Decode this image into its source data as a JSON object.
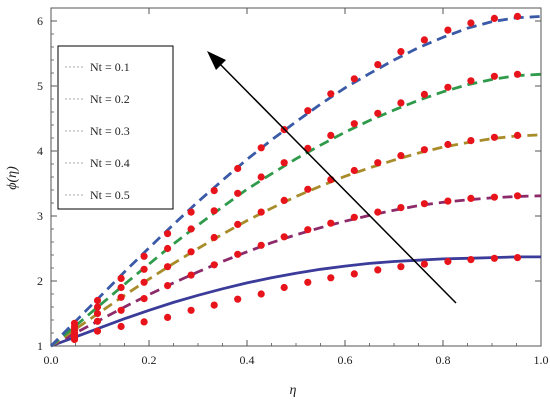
{
  "chart_data": {
    "type": "line",
    "title": "",
    "xlabel": "η",
    "ylabel": "ϕ(η)",
    "xlim": [
      0.0,
      1.0
    ],
    "ylim": [
      1.0,
      6.2
    ],
    "x_ticks": [
      "0.0",
      "0.2",
      "0.4",
      "0.6",
      "0.8",
      "1.0"
    ],
    "y_ticks": [
      "1",
      "2",
      "3",
      "4",
      "5",
      "6"
    ],
    "legend_position": "top-left",
    "annotation": "arrow indicating increasing Nt",
    "marker_color": "#e8141c",
    "series": [
      {
        "name": "Nt = 0.1",
        "color": "#3b3b9a",
        "dash": "solid",
        "curve": {
          "x": [
            0,
            0.05,
            0.1,
            0.15,
            0.2,
            0.25,
            0.3,
            0.35,
            0.4,
            0.45,
            0.5,
            0.55,
            0.6,
            0.65,
            0.7,
            0.75,
            0.8,
            0.85,
            0.9,
            0.95,
            1.0
          ],
          "y": [
            1.0,
            1.14,
            1.28,
            1.42,
            1.55,
            1.67,
            1.78,
            1.88,
            1.97,
            2.05,
            2.12,
            2.18,
            2.23,
            2.27,
            2.3,
            2.32,
            2.34,
            2.35,
            2.36,
            2.37,
            2.37
          ]
        },
        "points": {
          "x": [
            0.048,
            0.048,
            0.095,
            0.143,
            0.19,
            0.238,
            0.286,
            0.333,
            0.381,
            0.429,
            0.476,
            0.524,
            0.571,
            0.619,
            0.667,
            0.714,
            0.762,
            0.81,
            0.857,
            0.905,
            0.952
          ],
          "y": [
            1.1,
            1.15,
            1.23,
            1.3,
            1.37,
            1.44,
            1.55,
            1.63,
            1.72,
            1.8,
            1.9,
            1.98,
            2.05,
            2.11,
            2.17,
            2.22,
            2.26,
            2.3,
            2.33,
            2.35,
            2.36
          ]
        }
      },
      {
        "name": "Nt = 0.2",
        "color": "#8c2a6a",
        "dash": "dashed",
        "curve": {
          "x": [
            0,
            0.05,
            0.1,
            0.15,
            0.2,
            0.25,
            0.3,
            0.35,
            0.4,
            0.45,
            0.5,
            0.55,
            0.6,
            0.65,
            0.7,
            0.75,
            0.8,
            0.85,
            0.9,
            0.95,
            1.0
          ],
          "y": [
            1.0,
            1.2,
            1.4,
            1.6,
            1.79,
            1.97,
            2.14,
            2.3,
            2.45,
            2.59,
            2.71,
            2.82,
            2.92,
            3.01,
            3.09,
            3.16,
            3.21,
            3.25,
            3.28,
            3.3,
            3.31
          ]
        },
        "points": {
          "x": [
            0.048,
            0.048,
            0.095,
            0.143,
            0.19,
            0.238,
            0.286,
            0.333,
            0.381,
            0.429,
            0.476,
            0.524,
            0.571,
            0.619,
            0.667,
            0.714,
            0.762,
            0.81,
            0.857,
            0.905,
            0.952
          ],
          "y": [
            1.12,
            1.2,
            1.38,
            1.55,
            1.73,
            1.93,
            2.09,
            2.25,
            2.41,
            2.55,
            2.68,
            2.79,
            2.89,
            2.98,
            3.06,
            3.13,
            3.19,
            3.23,
            3.27,
            3.29,
            3.31
          ]
        }
      },
      {
        "name": "Nt = 0.3",
        "color": "#a88c2a",
        "dash": "dashed",
        "curve": {
          "x": [
            0,
            0.05,
            0.1,
            0.15,
            0.2,
            0.25,
            0.3,
            0.35,
            0.4,
            0.45,
            0.5,
            0.55,
            0.6,
            0.65,
            0.7,
            0.75,
            0.8,
            0.85,
            0.9,
            0.95,
            1.0
          ],
          "y": [
            1.0,
            1.26,
            1.52,
            1.78,
            2.03,
            2.27,
            2.5,
            2.72,
            2.93,
            3.12,
            3.3,
            3.46,
            3.61,
            3.74,
            3.86,
            3.97,
            4.06,
            4.13,
            4.19,
            4.23,
            4.25
          ]
        },
        "points": {
          "x": [
            0.048,
            0.048,
            0.095,
            0.143,
            0.19,
            0.238,
            0.286,
            0.333,
            0.381,
            0.429,
            0.476,
            0.524,
            0.571,
            0.619,
            0.667,
            0.714,
            0.762,
            0.81,
            0.857,
            0.905,
            0.952
          ],
          "y": [
            1.15,
            1.25,
            1.5,
            1.75,
            1.98,
            2.22,
            2.45,
            2.67,
            2.87,
            3.06,
            3.24,
            3.41,
            3.56,
            3.7,
            3.82,
            3.93,
            4.02,
            4.1,
            4.16,
            4.21,
            4.24
          ]
        }
      },
      {
        "name": "Nt = 0.4",
        "color": "#2f9a4a",
        "dash": "dashed",
        "curve": {
          "x": [
            0,
            0.05,
            0.1,
            0.15,
            0.2,
            0.25,
            0.3,
            0.35,
            0.4,
            0.45,
            0.5,
            0.55,
            0.6,
            0.65,
            0.7,
            0.75,
            0.8,
            0.85,
            0.9,
            0.95,
            1.0
          ],
          "y": [
            1.0,
            1.31,
            1.63,
            1.95,
            2.26,
            2.57,
            2.86,
            3.14,
            3.41,
            3.65,
            3.88,
            4.09,
            4.29,
            4.47,
            4.63,
            4.78,
            4.91,
            5.02,
            5.1,
            5.16,
            5.18
          ]
        },
        "points": {
          "x": [
            0.048,
            0.048,
            0.095,
            0.143,
            0.19,
            0.238,
            0.286,
            0.333,
            0.381,
            0.429,
            0.476,
            0.524,
            0.571,
            0.619,
            0.667,
            0.714,
            0.762,
            0.81,
            0.857,
            0.905,
            0.952
          ],
          "y": [
            1.2,
            1.3,
            1.6,
            1.9,
            2.18,
            2.5,
            2.8,
            3.08,
            3.35,
            3.6,
            3.82,
            4.04,
            4.24,
            4.42,
            4.58,
            4.74,
            4.87,
            4.98,
            5.08,
            5.15,
            5.18
          ]
        }
      },
      {
        "name": "Nt = 0.5",
        "color": "#3a5aa8",
        "dash": "dashed",
        "curve": {
          "x": [
            0,
            0.05,
            0.1,
            0.15,
            0.2,
            0.25,
            0.3,
            0.35,
            0.4,
            0.45,
            0.5,
            0.55,
            0.6,
            0.65,
            0.7,
            0.75,
            0.8,
            0.85,
            0.9,
            0.95,
            1.0
          ],
          "y": [
            1.0,
            1.38,
            1.76,
            2.14,
            2.51,
            2.87,
            3.22,
            3.55,
            3.87,
            4.17,
            4.45,
            4.72,
            4.97,
            5.19,
            5.4,
            5.59,
            5.75,
            5.89,
            5.99,
            6.05,
            6.07
          ]
        },
        "points": {
          "x": [
            0.048,
            0.048,
            0.095,
            0.143,
            0.19,
            0.238,
            0.286,
            0.333,
            0.381,
            0.429,
            0.476,
            0.524,
            0.571,
            0.619,
            0.667,
            0.714,
            0.762,
            0.81,
            0.857,
            0.905,
            0.952
          ],
          "y": [
            1.25,
            1.35,
            1.7,
            2.04,
            2.38,
            2.73,
            3.06,
            3.39,
            3.73,
            4.05,
            4.33,
            4.62,
            4.88,
            5.11,
            5.33,
            5.53,
            5.71,
            5.86,
            5.97,
            6.04,
            6.07
          ]
        }
      }
    ]
  }
}
